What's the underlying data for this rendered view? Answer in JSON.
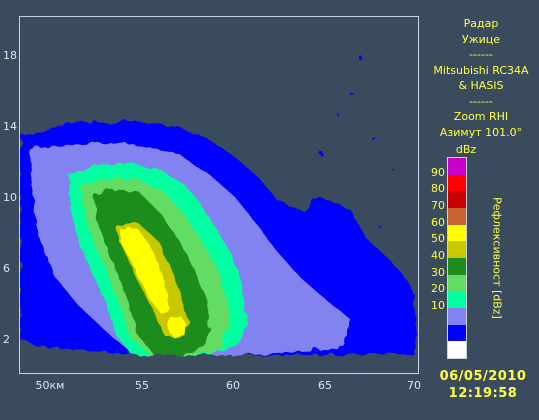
{
  "radar_info": {
    "lines": [
      "Радар",
      "Ужице",
      "------",
      "Mitsubishi RC34A",
      "& HASIS",
      "------",
      "Zoom RHI",
      "Азимут 101.0°"
    ]
  },
  "y_axis": {
    "ticks": [
      "18",
      "14",
      "10",
      "6",
      "2"
    ]
  },
  "x_axis": {
    "ticks": [
      "50км",
      "55",
      "60",
      "65",
      "70"
    ]
  },
  "scale": {
    "unit": "dBz",
    "title": "Рефлексивност [dBz]",
    "labels": [
      "90",
      "80",
      "70",
      "60",
      "50",
      "40",
      "30",
      "20",
      "10"
    ],
    "colors": [
      "#c800c8",
      "#ff0000",
      "#c80000",
      "#c86432",
      "#ffff00",
      "#c8c800",
      "#1e8c1e",
      "#64dc64",
      "#00ffa0",
      "#8282f0",
      "#0000ff",
      "#ffffff"
    ]
  },
  "timestamp": {
    "date": "06/05/2010",
    "time": "12:19:58"
  },
  "colors": {
    "background": "#3a4b5e",
    "text": "#ffff44",
    "frame": "#c8d2dc"
  }
}
